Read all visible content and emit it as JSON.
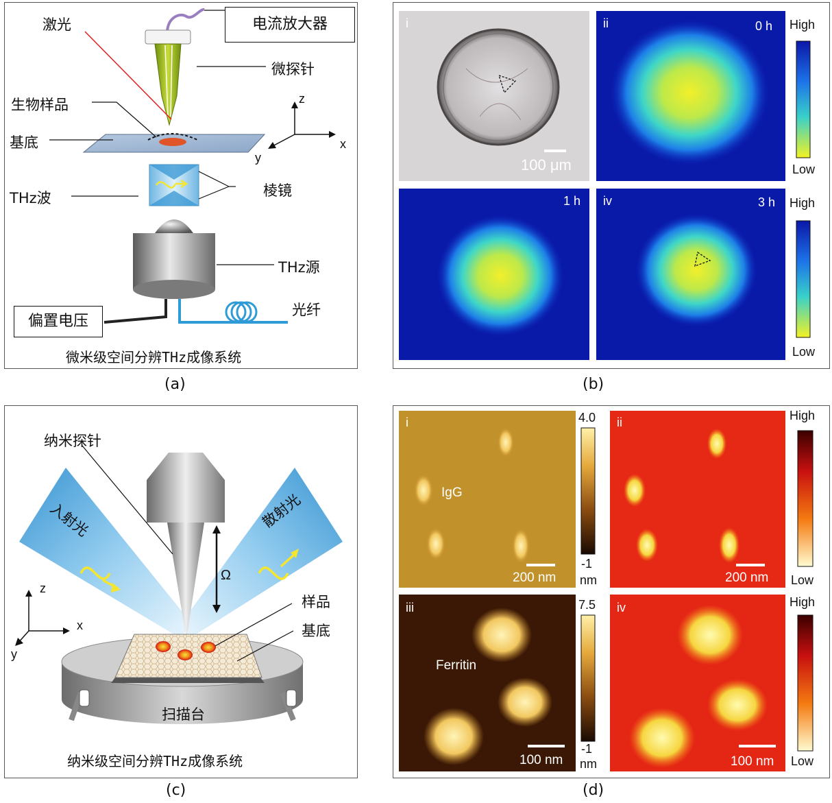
{
  "panel_a": {
    "laser": "激光",
    "amplifier": "电流放大器",
    "microprobe": "微探针",
    "bio_sample": "生物样品",
    "substrate": "基底",
    "prism": "棱镜",
    "thz_wave": "THz波",
    "thz_source": "THz源",
    "bias_voltage": "偏置电压",
    "fiber": "光纤",
    "axis_z": "z",
    "axis_x": "x",
    "axis_y": "y",
    "title": "微米级空间分辨THz成像系统",
    "caption": "(a)"
  },
  "panel_b": {
    "i": {
      "tag": "i",
      "scale": "100 μm"
    },
    "ii": {
      "tag": "ii",
      "time": "0 h"
    },
    "iii": {
      "time": "1 h"
    },
    "iv": {
      "tag": "iv",
      "time": "3 h"
    },
    "colorbar_top": {
      "high": "High",
      "low": "Low"
    },
    "colorbar_bottom": {
      "high": "High",
      "low": "Low"
    },
    "caption": "(b)"
  },
  "panel_c": {
    "nano_probe": "纳米探针",
    "incident": "入射光",
    "scattered": "散射光",
    "omega": "Ω",
    "sample": "样品",
    "substrate": "基底",
    "stage": "扫描台",
    "axis_z": "z",
    "axis_x": "x",
    "axis_y": "y",
    "title": "纳米级空间分辨THz成像系统",
    "caption": "(c)"
  },
  "panel_d": {
    "i": {
      "tag": "i",
      "label": "IgG",
      "scale": "200 nm"
    },
    "cb_i": {
      "max": "4.0",
      "min": "-1",
      "unit": "nm"
    },
    "ii": {
      "tag": "ii",
      "scale": "200 nm"
    },
    "cb_ii": {
      "high": "High",
      "low": "Low"
    },
    "iii": {
      "tag": "iii",
      "label": "Ferritin",
      "scale": "100 nm"
    },
    "cb_iii": {
      "max": "7.5",
      "min": "-1",
      "unit": "nm"
    },
    "iv": {
      "tag": "iv",
      "scale": "100 nm"
    },
    "cb_iv": {
      "high": "High",
      "low": "Low"
    },
    "caption": "(d)"
  }
}
